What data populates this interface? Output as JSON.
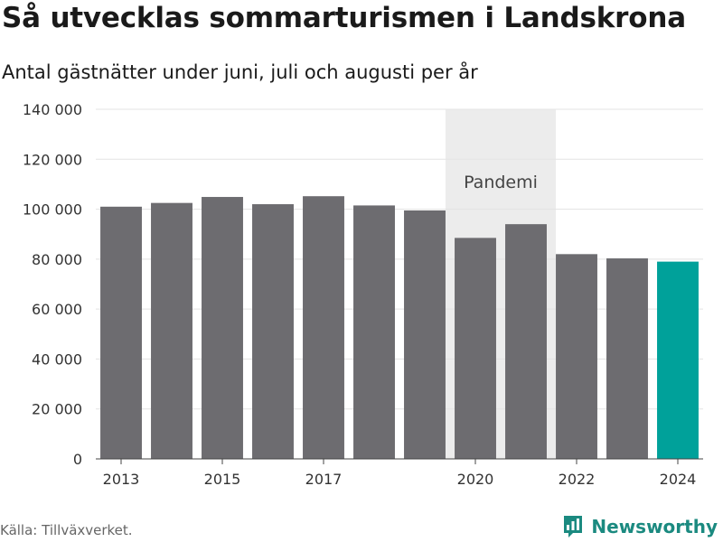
{
  "title": "Så utvecklas sommarturismen i Landskrona",
  "subtitle": "Antal gästnätter under juni, juli och augusti per år",
  "source": "Källa: Tillväxverket.",
  "brand": {
    "name": "Newsworthy",
    "color": "#1b8a80"
  },
  "chart_data": {
    "type": "bar",
    "categories": [
      "2013",
      "2014",
      "2015",
      "2016",
      "2017",
      "2018",
      "2019",
      "2020",
      "2021",
      "2022",
      "2023",
      "2024"
    ],
    "values": [
      101000,
      102500,
      104900,
      102000,
      105200,
      101500,
      99500,
      88500,
      94000,
      82000,
      80300,
      79000
    ],
    "x_tick_labels": [
      "2013",
      "2015",
      "2017",
      "2020",
      "2022",
      "2024"
    ],
    "ylim": [
      0,
      140000
    ],
    "y_ticks": [
      0,
      20000,
      40000,
      60000,
      80000,
      100000,
      120000,
      140000
    ],
    "y_tick_labels": [
      "0",
      "20 000",
      "40 000",
      "60 000",
      "80 000",
      "100 000",
      "120 000",
      "140 000"
    ],
    "grid": true,
    "colors": {
      "bar": "#6d6c70",
      "highlight": "#00a19a",
      "shade": "#ececec",
      "grid": "#e3e3e3"
    },
    "highlight_category": "2024",
    "annotation": {
      "label": "Pandemi",
      "from": "2020",
      "to": "2021"
    }
  }
}
